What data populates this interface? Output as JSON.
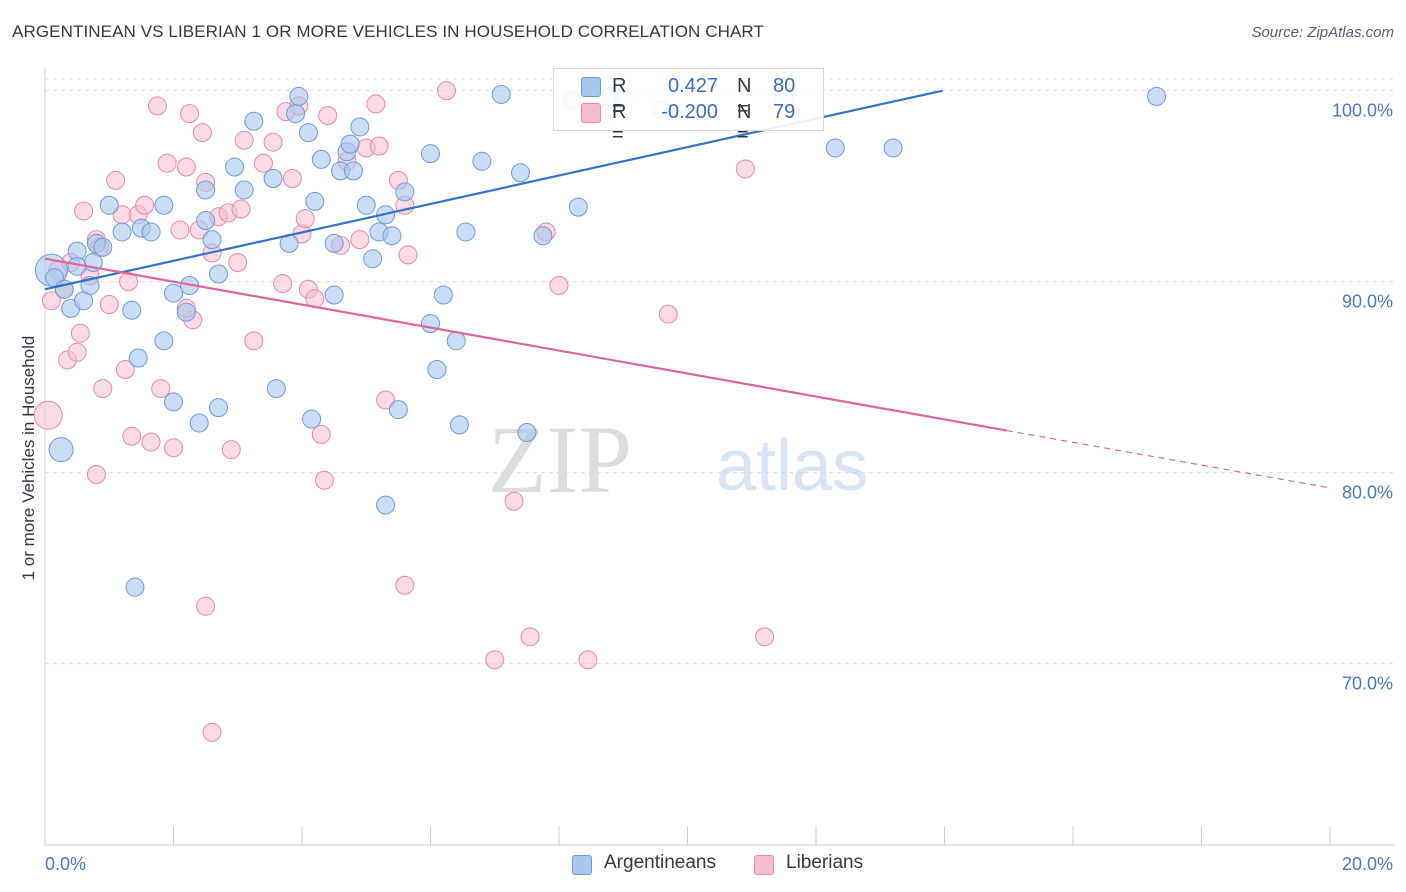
{
  "title": "ARGENTINEAN VS LIBERIAN 1 OR MORE VEHICLES IN HOUSEHOLD CORRELATION CHART",
  "source": "Source: ZipAtlas.com",
  "watermark": {
    "zip": "ZIP",
    "atlas": "atlas"
  },
  "colors": {
    "argentineans_fill": "#a9c6ef",
    "argentineans_stroke": "#6f9ad8",
    "argentineans_line": "#3471c8",
    "liberians_fill": "#f7bcd0",
    "liberians_stroke": "#e58aab",
    "liberians_line": "#e0669a",
    "tick_text": "#4a78c4",
    "grid": "#dcdcdc"
  },
  "legend": {
    "rows": [
      {
        "r_label": "R =",
        "r_value": "0.427",
        "n_label": "N =",
        "n_value": "80"
      },
      {
        "r_label": "R =",
        "r_value": "-0.200",
        "n_label": "N =",
        "n_value": "79"
      }
    ],
    "series_names": [
      "Argentineans",
      "Liberians"
    ]
  },
  "chart_data": {
    "type": "scatter",
    "title": "ARGENTINEAN VS LIBERIAN 1 OR MORE VEHICLES IN HOUSEHOLD CORRELATION CHART",
    "xlabel": "",
    "ylabel": "1 or more Vehicles in Household",
    "xlim": [
      0,
      20
    ],
    "ylim": [
      60.5,
      101.5
    ],
    "x_tick_labels": [
      "0.0%",
      "20.0%"
    ],
    "y_ticks": [
      70,
      80,
      90,
      100
    ],
    "y_tick_labels": [
      "70.0%",
      "80.0%",
      "90.0%",
      "100.0%"
    ],
    "grid": true,
    "legend_position": "top-center",
    "series": [
      {
        "name": "Argentineans",
        "trend": {
          "x": [
            0.0,
            13.97
          ],
          "y": [
            89.6,
            100.0
          ]
        },
        "points": [
          [
            0.1,
            90.6
          ],
          [
            0.15,
            90.2
          ],
          [
            0.25,
            81.2
          ],
          [
            0.3,
            89.6
          ],
          [
            0.4,
            88.6
          ],
          [
            0.5,
            91.6
          ],
          [
            0.6,
            89.0
          ],
          [
            0.7,
            89.8
          ],
          [
            0.75,
            91.0
          ],
          [
            0.8,
            92.0
          ],
          [
            0.9,
            91.8
          ],
          [
            1.0,
            94.0
          ],
          [
            1.2,
            92.6
          ],
          [
            1.35,
            88.5
          ],
          [
            1.5,
            92.8
          ],
          [
            1.65,
            92.6
          ],
          [
            1.85,
            94.0
          ],
          [
            2.0,
            89.4
          ],
          [
            2.2,
            88.4
          ],
          [
            2.25,
            89.8
          ],
          [
            2.5,
            93.2
          ],
          [
            2.6,
            92.2
          ],
          [
            2.7,
            90.4
          ],
          [
            2.95,
            96.0
          ],
          [
            3.1,
            94.8
          ],
          [
            3.25,
            98.4
          ],
          [
            3.55,
            95.4
          ],
          [
            3.8,
            92.0
          ],
          [
            3.9,
            98.8
          ],
          [
            3.95,
            99.7
          ],
          [
            4.1,
            97.8
          ],
          [
            4.2,
            94.2
          ],
          [
            4.3,
            96.4
          ],
          [
            4.5,
            92.0
          ],
          [
            4.5,
            89.3
          ],
          [
            4.6,
            95.8
          ],
          [
            4.7,
            96.8
          ],
          [
            4.75,
            97.2
          ],
          [
            4.8,
            95.8
          ],
          [
            4.9,
            98.1
          ],
          [
            5.0,
            94.0
          ],
          [
            5.1,
            91.2
          ],
          [
            5.2,
            92.6
          ],
          [
            5.3,
            93.5
          ],
          [
            5.6,
            94.7
          ],
          [
            6.0,
            96.7
          ],
          [
            6.0,
            87.8
          ],
          [
            5.4,
            92.4
          ],
          [
            6.2,
            89.3
          ],
          [
            6.4,
            86.9
          ],
          [
            6.55,
            92.6
          ],
          [
            6.8,
            96.3
          ],
          [
            7.1,
            99.8
          ],
          [
            7.4,
            95.7
          ],
          [
            7.75,
            92.4
          ],
          [
            8.2,
            99.5
          ],
          [
            8.3,
            93.9
          ],
          [
            8.7,
            98.8
          ],
          [
            8.8,
            99.7
          ],
          [
            9.0,
            99.7
          ],
          [
            9.6,
            99.0
          ],
          [
            11.5,
            99.6
          ],
          [
            12.3,
            97.0
          ],
          [
            13.2,
            97.0
          ],
          [
            17.3,
            99.7
          ],
          [
            1.45,
            86.0
          ],
          [
            1.4,
            74.0
          ],
          [
            2.4,
            82.6
          ],
          [
            2.7,
            83.4
          ],
          [
            3.6,
            84.4
          ],
          [
            4.15,
            82.8
          ],
          [
            5.5,
            83.3
          ],
          [
            6.45,
            82.5
          ],
          [
            7.5,
            82.1
          ],
          [
            5.3,
            78.3
          ],
          [
            2.0,
            83.7
          ],
          [
            1.85,
            86.9
          ],
          [
            0.5,
            90.8
          ],
          [
            2.5,
            94.8
          ],
          [
            6.1,
            85.4
          ]
        ]
      },
      {
        "name": "Liberians",
        "trend": {
          "x": [
            0.0,
            14.97
          ],
          "y": [
            91.2,
            82.2
          ]
        },
        "trend_dashed": {
          "x": [
            14.97,
            20.0
          ],
          "y": [
            82.2,
            79.2
          ]
        },
        "points": [
          [
            0.05,
            83.0
          ],
          [
            0.1,
            89.0
          ],
          [
            0.2,
            90.6
          ],
          [
            0.3,
            89.6
          ],
          [
            0.35,
            85.9
          ],
          [
            0.4,
            91.0
          ],
          [
            0.5,
            86.3
          ],
          [
            0.55,
            87.3
          ],
          [
            0.6,
            93.7
          ],
          [
            0.7,
            90.3
          ],
          [
            0.8,
            92.2
          ],
          [
            0.85,
            91.8
          ],
          [
            0.9,
            84.4
          ],
          [
            1.0,
            88.8
          ],
          [
            1.1,
            95.3
          ],
          [
            1.2,
            93.5
          ],
          [
            1.25,
            85.4
          ],
          [
            1.35,
            81.9
          ],
          [
            1.45,
            93.5
          ],
          [
            1.55,
            94.0
          ],
          [
            1.65,
            81.6
          ],
          [
            1.75,
            99.2
          ],
          [
            1.8,
            84.4
          ],
          [
            1.9,
            96.2
          ],
          [
            2.0,
            81.3
          ],
          [
            2.1,
            92.7
          ],
          [
            2.2,
            96.0
          ],
          [
            2.25,
            98.8
          ],
          [
            2.3,
            88.0
          ],
          [
            2.4,
            92.7
          ],
          [
            2.45,
            97.8
          ],
          [
            2.5,
            95.2
          ],
          [
            2.6,
            91.5
          ],
          [
            2.7,
            93.4
          ],
          [
            2.85,
            93.6
          ],
          [
            2.9,
            81.2
          ],
          [
            3.0,
            91.0
          ],
          [
            3.05,
            93.8
          ],
          [
            3.1,
            97.4
          ],
          [
            3.25,
            86.9
          ],
          [
            3.4,
            96.2
          ],
          [
            3.55,
            97.3
          ],
          [
            3.75,
            98.9
          ],
          [
            3.85,
            95.4
          ],
          [
            3.95,
            99.2
          ],
          [
            4.0,
            92.5
          ],
          [
            4.05,
            93.3
          ],
          [
            4.1,
            89.6
          ],
          [
            4.2,
            89.1
          ],
          [
            4.3,
            82.0
          ],
          [
            4.35,
            79.6
          ],
          [
            4.4,
            98.7
          ],
          [
            4.6,
            91.9
          ],
          [
            4.7,
            96.3
          ],
          [
            5.0,
            97.0
          ],
          [
            5.15,
            99.3
          ],
          [
            5.2,
            97.1
          ],
          [
            5.3,
            83.8
          ],
          [
            5.5,
            95.3
          ],
          [
            5.6,
            94.0
          ],
          [
            5.65,
            91.4
          ],
          [
            5.6,
            74.1
          ],
          [
            6.25,
            100.0
          ],
          [
            7.0,
            70.2
          ],
          [
            7.3,
            78.5
          ],
          [
            7.55,
            71.4
          ],
          [
            7.8,
            92.6
          ],
          [
            8.0,
            89.8
          ],
          [
            8.45,
            70.2
          ],
          [
            9.7,
            88.3
          ],
          [
            10.9,
            95.9
          ],
          [
            11.2,
            71.4
          ],
          [
            2.5,
            73.0
          ],
          [
            2.6,
            66.4
          ],
          [
            0.8,
            79.9
          ],
          [
            1.3,
            90.0
          ],
          [
            2.2,
            88.6
          ],
          [
            3.7,
            89.9
          ],
          [
            4.9,
            92.2
          ]
        ]
      }
    ]
  }
}
